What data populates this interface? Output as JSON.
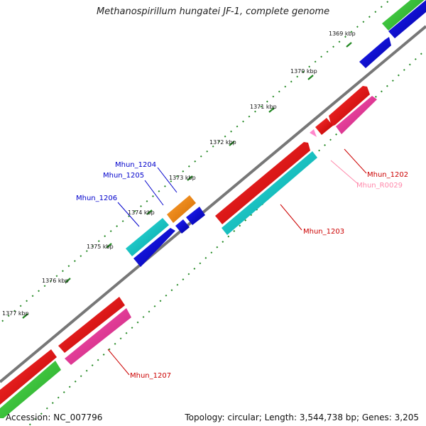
{
  "header": {
    "title": "Methanospirillum hungatei JF-1, complete genome"
  },
  "footer": {
    "accession": "Accession: NC_007796",
    "summary": "Topology: circular; Length: 3,544,738 bp; Genes: 3,205"
  },
  "scale_labels": [
    "1369 kbp",
    "1370 kbp",
    "1371 kbp",
    "1372 kbp",
    "1373 kbp",
    "1374 kbp",
    "1375 kbp",
    "1376 kbp",
    "1377 kbp"
  ],
  "gene_labels": {
    "mhun_1204": "Mhun_1204",
    "mhun_1205": "Mhun_1205",
    "mhun_1206": "Mhun_1206",
    "mhun_1202": "Mhun_1202",
    "mhun_r0029": "Mhun_R0029",
    "mhun_1203": "Mhun_1203",
    "mhun_1207": "Mhun_1207"
  },
  "colors": {
    "gene_red": "#ee0000",
    "gene_pink": "#ee3399",
    "gene_cyan": "#11cccc",
    "gene_blue": "#0000dd",
    "gene_orange": "#ff8800",
    "gene_green": "#33cc33",
    "trna_pink": "#ff88cc",
    "backbone": "#777777",
    "tick_green": "#228822",
    "label_blue": "#0000cc",
    "label_red": "#cc0000",
    "label_pink": "#ff88aa"
  }
}
